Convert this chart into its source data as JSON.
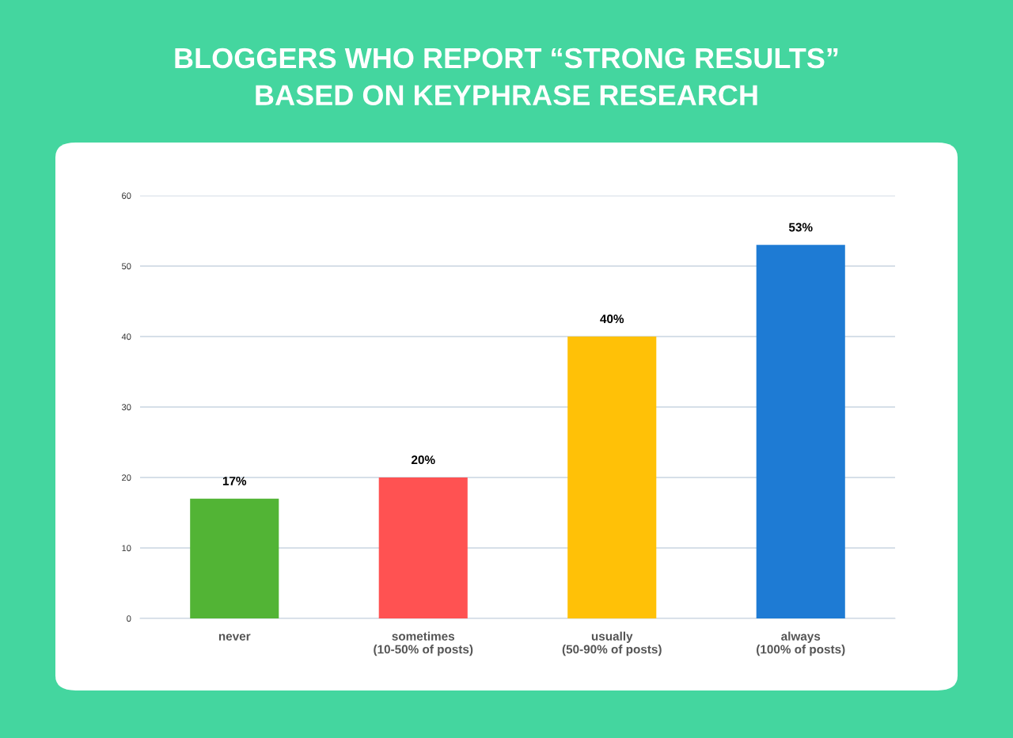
{
  "chart_data": {
    "type": "bar",
    "title": "BLOGGERS WHO REPORT “STRONG RESULTS”\nBASED ON KEYPHRASE RESEARCH",
    "categories": [
      "never",
      "sometimes\n(10-50% of posts)",
      "usually\n(50-90% of posts)",
      "always\n(100% of posts)"
    ],
    "values": [
      17,
      20,
      40,
      53
    ],
    "colors": [
      "#52b435",
      "#ff5252",
      "#ffc107",
      "#1e7bd4"
    ],
    "value_labels": [
      "17%",
      "20%",
      "40%",
      "53%"
    ],
    "ylim": [
      0,
      60
    ],
    "yticks": [
      0,
      10,
      20,
      30,
      40,
      50,
      60
    ],
    "grid": "y"
  }
}
